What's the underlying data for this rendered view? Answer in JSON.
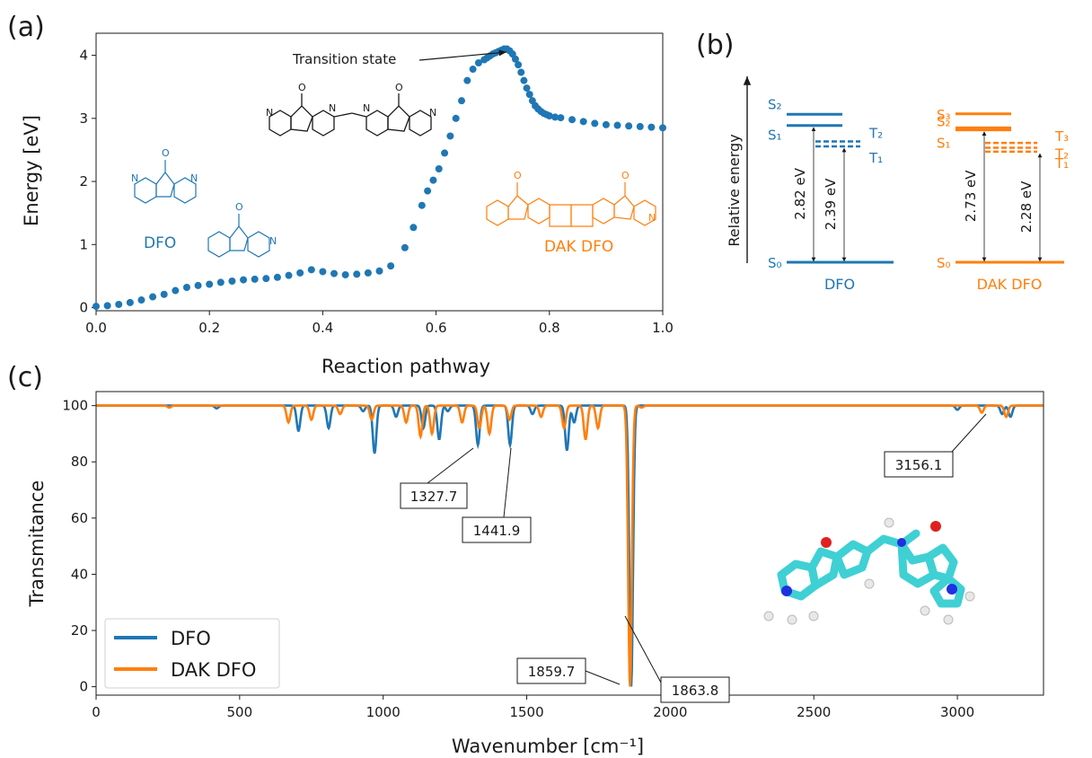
{
  "panels": {
    "a": "(a)",
    "b": "(b)",
    "c": "(c)"
  },
  "colors": {
    "dfo": "#1f77b4",
    "dak": "#ff7f0e",
    "ink": "#1a1a1a",
    "atom_c": "#3fd0d4",
    "atom_n": "#2030e0",
    "atom_o": "#e02020",
    "atom_h": "#e8e8e8"
  },
  "chart_data": [
    {
      "type": "scatter",
      "xlabel": "Reaction pathway",
      "ylabel": "Energy [eV]",
      "xlim": [
        0,
        1
      ],
      "ylim": [
        -0.05,
        4.35
      ],
      "xticks": [
        "0.0",
        "0.2",
        "0.4",
        "0.6",
        "0.8",
        "1.0"
      ],
      "yticks": [
        "0",
        "1",
        "2",
        "3",
        "4"
      ],
      "series": [
        {
          "color": "#1f77b4",
          "x": [
            0.0,
            0.02,
            0.04,
            0.06,
            0.08,
            0.1,
            0.12,
            0.14,
            0.16,
            0.18,
            0.2,
            0.22,
            0.24,
            0.26,
            0.28,
            0.3,
            0.32,
            0.34,
            0.36,
            0.38,
            0.4,
            0.42,
            0.44,
            0.46,
            0.48,
            0.5,
            0.52,
            0.545,
            0.56,
            0.575,
            0.585,
            0.595,
            0.605,
            0.615,
            0.625,
            0.635,
            0.645,
            0.655,
            0.665,
            0.675,
            0.685,
            0.69,
            0.695,
            0.7,
            0.705,
            0.71,
            0.715,
            0.72,
            0.725,
            0.73,
            0.735,
            0.74,
            0.745,
            0.75,
            0.755,
            0.76,
            0.765,
            0.77,
            0.775,
            0.78,
            0.785,
            0.79,
            0.795,
            0.8,
            0.81,
            0.82,
            0.84,
            0.86,
            0.88,
            0.9,
            0.92,
            0.94,
            0.96,
            0.98,
            1.0
          ],
          "y": [
            0.02,
            0.03,
            0.05,
            0.08,
            0.12,
            0.17,
            0.21,
            0.27,
            0.32,
            0.35,
            0.37,
            0.4,
            0.42,
            0.44,
            0.45,
            0.46,
            0.48,
            0.51,
            0.55,
            0.6,
            0.57,
            0.54,
            0.52,
            0.53,
            0.55,
            0.58,
            0.66,
            0.95,
            1.27,
            1.62,
            1.85,
            2.02,
            2.2,
            2.45,
            2.72,
            3.0,
            3.28,
            3.6,
            3.78,
            3.88,
            3.93,
            3.96,
            3.99,
            4.02,
            4.04,
            4.06,
            4.08,
            4.1,
            4.1,
            4.07,
            4.02,
            3.94,
            3.85,
            3.73,
            3.6,
            3.48,
            3.38,
            3.28,
            3.2,
            3.15,
            3.11,
            3.08,
            3.06,
            3.04,
            3.02,
            3.01,
            2.98,
            2.95,
            2.92,
            2.9,
            2.89,
            2.88,
            2.87,
            2.86,
            2.85
          ]
        }
      ],
      "annotations": [
        {
          "text": "Transition state",
          "x": 0.72,
          "y": 4.1
        }
      ],
      "molecule_labels": [
        "DFO",
        "DAK DFO"
      ]
    },
    {
      "type": "diagram",
      "ylabel": "Relative energy",
      "groups": [
        {
          "name": "DFO",
          "color": "#1f77b4",
          "singlets": [
            {
              "label": "S₀",
              "energy": 0
            },
            {
              "label": "S₁",
              "energy": 2.82
            },
            {
              "label": "S₂",
              "energy": 3.05
            }
          ],
          "triplets": [
            {
              "label": "T₁",
              "energy": 2.39
            },
            {
              "label": "T₂",
              "energy": 2.49
            }
          ],
          "gap_labels": [
            "2.82 eV",
            "2.39 eV"
          ]
        },
        {
          "name": "DAK DFO",
          "color": "#ff7f0e",
          "singlets": [
            {
              "label": "S₀",
              "energy": 0
            },
            {
              "label": "S₁",
              "energy": 2.73
            },
            {
              "label": "S₂",
              "energy": 2.77
            },
            {
              "label": "S₃",
              "energy": 3.06
            }
          ],
          "triplets": [
            {
              "label": "T₁",
              "energy": 2.28
            },
            {
              "label": "T₂",
              "energy": 2.36
            },
            {
              "label": "T₃",
              "energy": 2.46
            }
          ],
          "gap_labels": [
            "2.73 eV",
            "2.28 eV"
          ]
        }
      ]
    },
    {
      "type": "line",
      "xlabel": "Wavenumber [cm⁻¹]",
      "ylabel": "Transmitance",
      "xlim": [
        0,
        3300
      ],
      "ylim": [
        -3,
        105
      ],
      "xticks": [
        0,
        500,
        1000,
        1500,
        2000,
        2500,
        3000
      ],
      "yticks": [
        0,
        20,
        40,
        60,
        80,
        100
      ],
      "legend": "lower-left",
      "series": [
        {
          "name": "DFO",
          "color": "#1f77b4",
          "peaks": [
            [
              420,
              1
            ],
            [
              705,
              9
            ],
            [
              810,
              8
            ],
            [
              930,
              2
            ],
            [
              970,
              17
            ],
            [
              1045,
              4
            ],
            [
              1140,
              8
            ],
            [
              1195,
              12
            ],
            [
              1225,
              2
            ],
            [
              1330,
              14
            ],
            [
              1441.9,
              14
            ],
            [
              1520,
              3
            ],
            [
              1640,
              16
            ],
            [
              1665,
              6
            ],
            [
              1863.8,
              100
            ],
            [
              3000,
              1.5
            ],
            [
              3156.1,
              3
            ],
            [
              3185,
              4
            ]
          ]
        },
        {
          "name": "DAK DFO",
          "color": "#ff7f0e",
          "peaks": [
            [
              255,
              0.7
            ],
            [
              670,
              6
            ],
            [
              750,
              5
            ],
            [
              850,
              3
            ],
            [
              960,
              5
            ],
            [
              1080,
              6
            ],
            [
              1130,
              11
            ],
            [
              1170,
              10
            ],
            [
              1275,
              6
            ],
            [
              1335,
              8
            ],
            [
              1370,
              10
            ],
            [
              1440,
              5
            ],
            [
              1550,
              4
            ],
            [
              1630,
              8
            ],
            [
              1705,
              12
            ],
            [
              1748,
              8
            ],
            [
              1859.7,
              100
            ],
            [
              1900,
              0.7
            ],
            [
              3085,
              2.5
            ],
            [
              3170,
              4
            ]
          ]
        }
      ],
      "annotations": [
        "1327.7",
        "1441.9",
        "1859.7",
        "1863.8",
        "3156.1"
      ]
    }
  ]
}
